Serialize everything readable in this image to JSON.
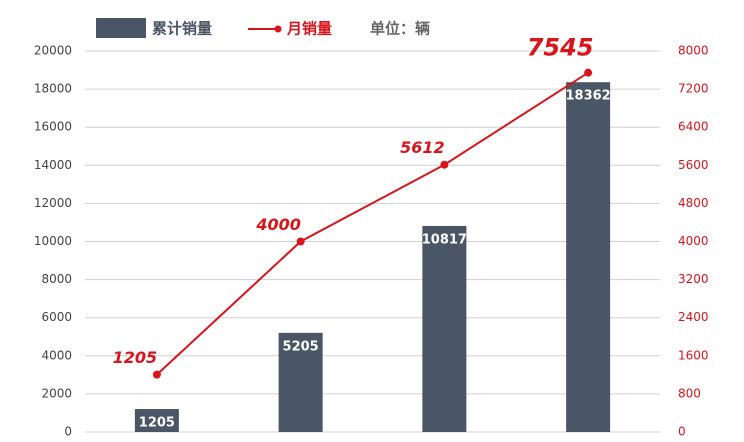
{
  "chart_data": {
    "type": "bar-line",
    "categories": [
      null,
      null,
      null,
      null
    ],
    "unit_note": "单位：辆",
    "series": [
      {
        "name": "累计销量",
        "type": "bar",
        "color": "#4a5565",
        "values": [
          1205,
          5205,
          10817,
          18362
        ]
      },
      {
        "name": "月销量",
        "type": "line",
        "axis": "y2",
        "color": "#d9151b",
        "values": [
          1205,
          4000,
          5612,
          7545
        ]
      }
    ],
    "ylim": [
      0,
      20000
    ],
    "yticks": [
      0,
      2000,
      4000,
      6000,
      8000,
      10000,
      12000,
      14000,
      16000,
      18000,
      20000
    ],
    "y2lim": [
      0,
      8000
    ],
    "y2ticks": [
      0,
      800,
      1600,
      2400,
      3200,
      4000,
      4800,
      5600,
      6400,
      7200,
      8000
    ],
    "grid": true
  }
}
